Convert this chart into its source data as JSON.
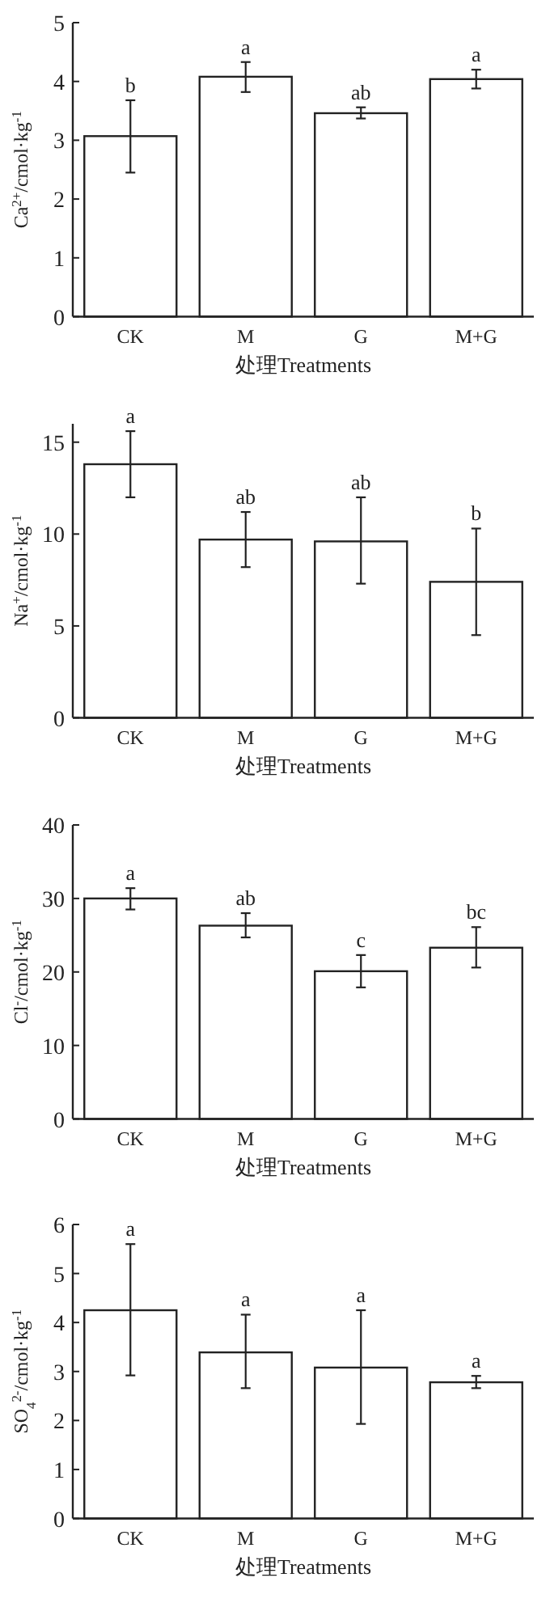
{
  "chart_data": [
    {
      "type": "bar",
      "categories": [
        "CK",
        "M",
        "G",
        "M+G"
      ],
      "values": [
        3.07,
        4.08,
        3.46,
        4.04
      ],
      "errors": [
        [
          2.45,
          3.68
        ],
        [
          3.82,
          4.33
        ],
        [
          3.37,
          3.56
        ],
        [
          3.88,
          4.2
        ]
      ],
      "color": "#ffffff",
      "ylim": [
        0,
        5
      ],
      "yticks": [
        0,
        1,
        2,
        3,
        4,
        5
      ],
      "ylabel": "Ca$^{2+}$/cmol·kg$^{-1}$",
      "xlabel": "处理Treatments",
      "annotations": [
        {
          "text": "b",
          "x": "CK",
          "y": 3.68
        },
        {
          "text": "a",
          "x": "M",
          "y": 4.33
        },
        {
          "text": "ab",
          "x": "G",
          "y": 3.56
        },
        {
          "text": "a",
          "x": "M+G",
          "y": 4.2
        }
      ]
    },
    {
      "type": "bar",
      "categories": [
        "CK",
        "M",
        "G",
        "M+G"
      ],
      "values": [
        13.8,
        9.7,
        9.6,
        7.4
      ],
      "errors": [
        [
          12.0,
          15.6
        ],
        [
          8.2,
          11.2
        ],
        [
          7.3,
          12.0
        ],
        [
          4.5,
          10.3
        ]
      ],
      "color": "#ffffff",
      "ylim": [
        0,
        16
      ],
      "yticks": [
        0,
        5,
        10,
        15
      ],
      "ylabel": "Na$^{+}$/cmol·kg$^{-1}$",
      "xlabel": "处理Treatments",
      "annotations": [
        {
          "text": "a",
          "x": "CK",
          "y": 15.6
        },
        {
          "text": "ab",
          "x": "M",
          "y": 11.2
        },
        {
          "text": "ab",
          "x": "G",
          "y": 12.0
        },
        {
          "text": "b",
          "x": "M+G",
          "y": 10.3
        }
      ]
    },
    {
      "type": "bar",
      "categories": [
        "CK",
        "M",
        "G",
        "M+G"
      ],
      "values": [
        30.0,
        26.3,
        20.1,
        23.3
      ],
      "errors": [
        [
          28.5,
          31.4
        ],
        [
          24.7,
          28.0
        ],
        [
          17.9,
          22.3
        ],
        [
          20.6,
          26.1
        ]
      ],
      "color": "#ffffff",
      "ylim": [
        0,
        40
      ],
      "yticks": [
        0,
        10,
        20,
        30,
        40
      ],
      "ylabel": "Cl$^{-}$/cmol·kg$^{-1}$",
      "xlabel": "处理Treatments",
      "annotations": [
        {
          "text": "a",
          "x": "CK",
          "y": 31.4
        },
        {
          "text": "ab",
          "x": "M",
          "y": 28.0
        },
        {
          "text": "c",
          "x": "G",
          "y": 22.3
        },
        {
          "text": "bc",
          "x": "M+G",
          "y": 26.1
        }
      ]
    },
    {
      "type": "bar",
      "categories": [
        "CK",
        "M",
        "G",
        "M+G"
      ],
      "values": [
        4.25,
        3.39,
        3.08,
        2.78
      ],
      "errors": [
        [
          2.92,
          5.6
        ],
        [
          2.66,
          4.16
        ],
        [
          1.93,
          4.25
        ],
        [
          2.66,
          2.91
        ]
      ],
      "color": "#ffffff",
      "ylim": [
        0,
        6
      ],
      "yticks": [
        0,
        1,
        2,
        3,
        4,
        5,
        6
      ],
      "ylabel": "SO$_{4}$$^{2-}$/cmol·kg$^{-1}$",
      "xlabel": "处理Treatments",
      "annotations": [
        {
          "text": "a",
          "x": "CK",
          "y": 5.6
        },
        {
          "text": "a",
          "x": "M",
          "y": 4.16
        },
        {
          "text": "a",
          "x": "G",
          "y": 4.25
        },
        {
          "text": "a",
          "x": "M+G",
          "y": 2.91
        }
      ]
    }
  ]
}
